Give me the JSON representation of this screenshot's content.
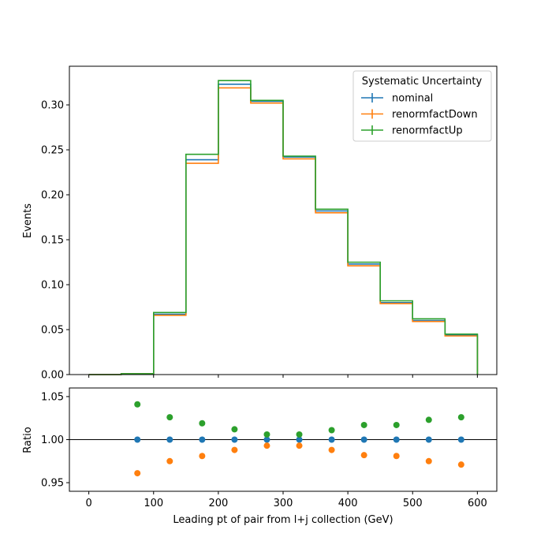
{
  "chart_data": {
    "type": "line",
    "top_panel": {
      "ylabel": "Events",
      "ylim": [
        0,
        0.343
      ],
      "yticks": [
        "0.00",
        "0.05",
        "0.10",
        "0.15",
        "0.20",
        "0.25",
        "0.30"
      ],
      "bin_edges": [
        0,
        50,
        100,
        150,
        200,
        250,
        300,
        350,
        400,
        450,
        500,
        550,
        600
      ],
      "series": [
        {
          "name": "nominal",
          "color": "#1f77b4",
          "values": [
            0.0,
            0.001,
            0.067,
            0.239,
            0.323,
            0.304,
            0.242,
            0.182,
            0.123,
            0.08,
            0.06,
            0.044
          ]
        },
        {
          "name": "renormfactDown",
          "color": "#ff7f0e",
          "values": [
            0.0,
            0.001,
            0.066,
            0.235,
            0.319,
            0.302,
            0.24,
            0.18,
            0.121,
            0.079,
            0.059,
            0.043
          ]
        },
        {
          "name": "renormfactUp",
          "color": "#2ca02c",
          "values": [
            0.0,
            0.001,
            0.069,
            0.245,
            0.327,
            0.305,
            0.243,
            0.184,
            0.125,
            0.082,
            0.062,
            0.045
          ]
        }
      ],
      "legend": {
        "title": "Systematic Uncertainty",
        "position": "top-right"
      }
    },
    "bottom_panel": {
      "ylabel": "Ratio",
      "ylim": [
        0.94,
        1.06
      ],
      "yticks": [
        "0.95",
        "1.00",
        "1.05"
      ],
      "reference_line": 1.0,
      "x": [
        75,
        125,
        175,
        225,
        275,
        325,
        375,
        425,
        475,
        525,
        575
      ],
      "series": [
        {
          "name": "nominal",
          "color": "#1f77b4",
          "values": [
            1.0,
            1.0,
            1.0,
            1.0,
            1.0,
            1.0,
            1.0,
            1.0,
            1.0,
            1.0,
            1.0
          ]
        },
        {
          "name": "renormfactDown",
          "color": "#ff7f0e",
          "values": [
            0.961,
            0.975,
            0.981,
            0.988,
            0.993,
            0.993,
            0.988,
            0.982,
            0.981,
            0.975,
            0.971
          ]
        },
        {
          "name": "renormfactUp",
          "color": "#2ca02c",
          "values": [
            1.041,
            1.026,
            1.019,
            1.012,
            1.006,
            1.006,
            1.011,
            1.017,
            1.017,
            1.023,
            1.026
          ]
        }
      ]
    },
    "xlabel": "Leading pt of pair from l+j collection (GeV)",
    "xlim": [
      -30,
      630
    ],
    "xticks": [
      "0",
      "100",
      "200",
      "300",
      "400",
      "500",
      "600"
    ]
  }
}
